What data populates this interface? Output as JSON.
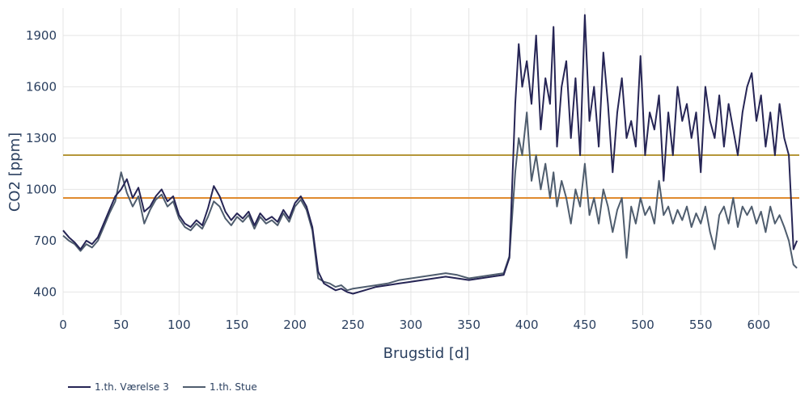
{
  "chart_data": {
    "type": "line",
    "xlabel": "Brugstid [d]",
    "ylabel": "CO2 [ppm]",
    "xlim": [
      0,
      635
    ],
    "ylim": [
      265,
      2060
    ],
    "xticks": [
      0,
      50,
      100,
      150,
      200,
      250,
      300,
      350,
      400,
      450,
      500,
      550,
      600
    ],
    "yticks": [
      400,
      700,
      1000,
      1300,
      1600,
      1900
    ],
    "grid": true,
    "legend_position": "bottom-left",
    "thresholds": [
      {
        "value": 1200,
        "color": "#b5973a"
      },
      {
        "value": 950,
        "color": "#e08a2e"
      }
    ],
    "series": [
      {
        "name": "1.th. Værelse 3",
        "color": "#262555",
        "x": [
          0,
          5,
          10,
          15,
          20,
          25,
          30,
          35,
          40,
          45,
          50,
          55,
          60,
          65,
          70,
          75,
          80,
          85,
          90,
          95,
          100,
          105,
          110,
          115,
          120,
          125,
          130,
          135,
          140,
          145,
          150,
          155,
          160,
          165,
          170,
          175,
          180,
          185,
          190,
          195,
          200,
          205,
          210,
          215,
          220,
          225,
          230,
          235,
          240,
          245,
          250,
          260,
          270,
          280,
          290,
          300,
          310,
          320,
          330,
          340,
          350,
          360,
          370,
          380,
          385,
          390,
          393,
          396,
          400,
          404,
          408,
          412,
          416,
          420,
          423,
          426,
          430,
          434,
          438,
          442,
          446,
          450,
          454,
          458,
          462,
          466,
          470,
          474,
          478,
          482,
          486,
          490,
          494,
          498,
          502,
          506,
          510,
          514,
          518,
          522,
          526,
          530,
          534,
          538,
          542,
          546,
          550,
          554,
          558,
          562,
          566,
          570,
          574,
          578,
          582,
          586,
          590,
          594,
          598,
          602,
          606,
          610,
          614,
          618,
          622,
          626,
          630,
          633
        ],
        "y": [
          760,
          720,
          690,
          650,
          700,
          680,
          720,
          800,
          880,
          960,
          1000,
          1060,
          950,
          1010,
          870,
          900,
          960,
          1000,
          930,
          960,
          850,
          800,
          780,
          820,
          790,
          890,
          1020,
          960,
          870,
          820,
          860,
          830,
          870,
          790,
          860,
          820,
          840,
          810,
          880,
          830,
          920,
          960,
          900,
          780,
          520,
          450,
          430,
          410,
          420,
          400,
          390,
          410,
          430,
          440,
          450,
          460,
          470,
          480,
          490,
          480,
          470,
          480,
          490,
          500,
          600,
          1500,
          1850,
          1600,
          1750,
          1500,
          1900,
          1350,
          1650,
          1500,
          1950,
          1250,
          1600,
          1750,
          1300,
          1650,
          1200,
          2020,
          1400,
          1600,
          1250,
          1800,
          1500,
          1100,
          1450,
          1650,
          1300,
          1400,
          1250,
          1780,
          1200,
          1450,
          1350,
          1550,
          1050,
          1450,
          1200,
          1600,
          1400,
          1500,
          1300,
          1450,
          1100,
          1600,
          1400,
          1300,
          1550,
          1250,
          1500,
          1350,
          1200,
          1450,
          1600,
          1680,
          1400,
          1550,
          1250,
          1450,
          1200,
          1500,
          1300,
          1200,
          650,
          700
        ]
      },
      {
        "name": "1.th. Stue",
        "color": "#4f5d6e",
        "x": [
          0,
          5,
          10,
          15,
          20,
          25,
          30,
          35,
          40,
          45,
          50,
          55,
          60,
          65,
          70,
          75,
          80,
          85,
          90,
          95,
          100,
          105,
          110,
          115,
          120,
          125,
          130,
          135,
          140,
          145,
          150,
          155,
          160,
          165,
          170,
          175,
          180,
          185,
          190,
          195,
          200,
          205,
          210,
          215,
          220,
          225,
          230,
          235,
          240,
          245,
          250,
          260,
          270,
          280,
          290,
          300,
          310,
          320,
          330,
          340,
          350,
          360,
          370,
          380,
          385,
          390,
          393,
          396,
          400,
          404,
          408,
          412,
          416,
          420,
          423,
          426,
          430,
          434,
          438,
          442,
          446,
          450,
          454,
          458,
          462,
          466,
          470,
          474,
          478,
          482,
          486,
          490,
          494,
          498,
          502,
          506,
          510,
          514,
          518,
          522,
          526,
          530,
          534,
          538,
          542,
          546,
          550,
          554,
          558,
          562,
          566,
          570,
          574,
          578,
          582,
          586,
          590,
          594,
          598,
          602,
          606,
          610,
          614,
          618,
          622,
          626,
          630,
          633
        ],
        "y": [
          730,
          700,
          680,
          640,
          680,
          660,
          700,
          780,
          860,
          930,
          1100,
          980,
          900,
          960,
          800,
          880,
          940,
          970,
          900,
          930,
          830,
          780,
          760,
          800,
          770,
          840,
          930,
          900,
          830,
          790,
          840,
          810,
          850,
          770,
          840,
          800,
          820,
          790,
          860,
          810,
          900,
          940,
          880,
          760,
          480,
          460,
          450,
          430,
          440,
          410,
          420,
          430,
          440,
          450,
          470,
          480,
          490,
          500,
          510,
          500,
          480,
          490,
          500,
          510,
          610,
          1100,
          1300,
          1200,
          1450,
          1050,
          1200,
          1000,
          1150,
          950,
          1100,
          900,
          1050,
          950,
          800,
          1000,
          900,
          1150,
          850,
          950,
          800,
          1000,
          900,
          750,
          880,
          950,
          600,
          900,
          800,
          950,
          850,
          900,
          800,
          1050,
          850,
          900,
          800,
          880,
          820,
          900,
          780,
          860,
          800,
          900,
          750,
          650,
          850,
          900,
          800,
          950,
          780,
          900,
          850,
          900,
          800,
          870,
          750,
          900,
          800,
          850,
          780,
          700,
          560,
          540
        ]
      }
    ]
  }
}
